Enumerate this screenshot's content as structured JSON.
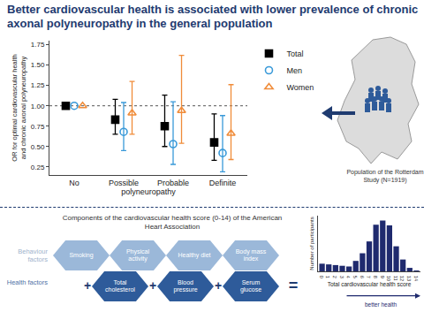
{
  "title": "Better cardiovascular health is associated with lower prevalence of chronic axonal polyneuropathy in the general population",
  "chart_data": [
    {
      "type": "scatter",
      "categories": [
        "No",
        "Possible",
        "Probable",
        "Definite"
      ],
      "xlabel": "polyneuropathy",
      "ylabel": "OR for optimal cardiovascular health and chronic axonal polyneuropathy",
      "ylim": [
        0.15,
        1.8
      ],
      "yticks": [
        0.25,
        {
          "value": 0.5,
          "label": "0.50"
        },
        0.75,
        {
          "value": 1,
          "label": "1.00"
        },
        1.25,
        {
          "value": 1.5,
          "label": "1.50"
        },
        1.75
      ],
      "reference_line": 1,
      "legend": "right",
      "series": [
        {
          "name": "Total",
          "color": "#000000",
          "marker": "square",
          "values": [
            1,
            0.83,
            0.75,
            0.55
          ],
          "ci_low": [
            null,
            0.65,
            0.5,
            0.33
          ],
          "ci_high": [
            null,
            1.08,
            1.13,
            0.9
          ]
        },
        {
          "name": "Men",
          "color": "#3a9ad9",
          "marker": "circle-open",
          "values": [
            1,
            0.68,
            0.53,
            0.42
          ],
          "ci_low": [
            null,
            0.45,
            0.28,
            0.19
          ],
          "ci_high": [
            null,
            1.04,
            1.05,
            0.88
          ]
        },
        {
          "name": "Women",
          "color": "#f08c3a",
          "marker": "triangle-up-open",
          "values": [
            1,
            0.91,
            0.94,
            0.66
          ],
          "ci_low": [
            null,
            0.65,
            0.54,
            0.34
          ],
          "ci_high": [
            null,
            1.3,
            1.62,
            1.26
          ]
        }
      ]
    },
    {
      "type": "bar",
      "categories": [
        "0",
        "1",
        "2",
        "3",
        "4",
        "5",
        "6",
        "7",
        "8",
        "9",
        "10",
        "11",
        "12",
        "13",
        "14"
      ],
      "values": [
        55,
        50,
        45,
        40,
        35,
        75,
        130,
        215,
        335,
        365,
        330,
        180,
        85,
        25,
        5
      ],
      "color": "#1f2a6e",
      "xlabel": "Total cardiovascular health score",
      "ylabel": "Number of participants",
      "ylim": [
        0,
        400
      ],
      "tick_labels": "x",
      "annotations": [
        {
          "text": "better health"
        }
      ]
    }
  ],
  "map": {
    "label": "Population of the Rotterdam Study (N=1919)"
  },
  "diagram": {
    "title": "Components of the cardiovascular health score (0-14) of the American Heart Association",
    "groups": [
      {
        "label": "Behaviour factors",
        "color": "#9bb8d9",
        "text_color": "#9fb3cc",
        "items": [
          "Smoking",
          "Physical activity",
          "Healthy diet",
          "Body mass index"
        ]
      },
      {
        "label": "Health factors",
        "color": "#2e5b9a",
        "text_color": "#4f72a6",
        "items": [
          "Total cholesterol",
          "Blood pressure",
          "Serum glucose"
        ]
      }
    ],
    "plus": "+",
    "equals": "="
  }
}
